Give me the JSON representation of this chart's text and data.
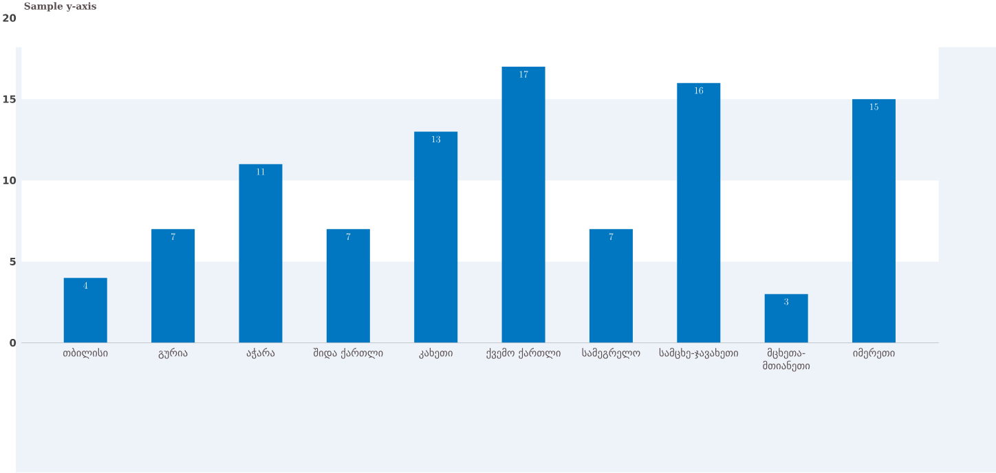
{
  "chart_data": {
    "type": "bar",
    "ylabel": "Sample y-axis",
    "categories": [
      "თბილისი",
      "გურია",
      "აჭარა",
      "შიდა ქართლი",
      "კახეთი",
      "ქვემო ქართლი",
      "სამეგრელო",
      "სამცხე-ჯავახეთი",
      "მცხეთა-მთიანეთი",
      "იმერეთი"
    ],
    "values": [
      4,
      7,
      11,
      7,
      13,
      17,
      7,
      16,
      3,
      15
    ],
    "color": "#0077c0",
    "ylim": [
      0,
      20
    ],
    "yticks": [
      0,
      5,
      10,
      15,
      20
    ],
    "data_labels": true,
    "bands": [
      {
        "axis": "y",
        "from": 5,
        "to": 10,
        "color": "#ffffff"
      },
      {
        "axis": "y",
        "from": 15,
        "to": 20,
        "color": "#ffffff"
      }
    ]
  }
}
